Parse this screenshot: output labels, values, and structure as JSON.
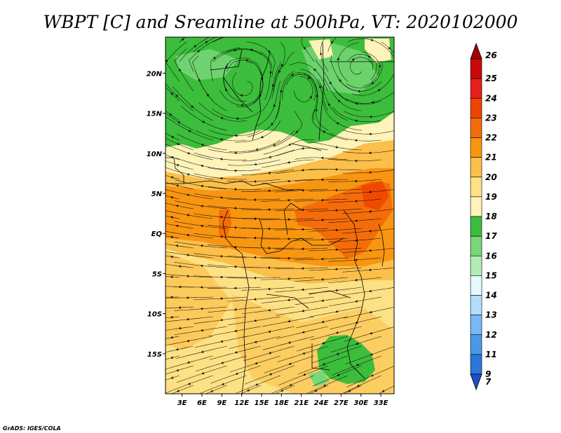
{
  "title": "WBPT [C] and Sreamline at 500hPa, VT: 2020102000",
  "credit": "GrADS: IGES/COLA",
  "map": {
    "lat_labels": [
      "20N",
      "15N",
      "10N",
      "5N",
      "EQ",
      "5S",
      "10S",
      "15S"
    ],
    "lat_values": [
      20,
      15,
      10,
      5,
      0,
      -5,
      -10,
      -15
    ],
    "lon_labels": [
      "3E",
      "6E",
      "9E",
      "12E",
      "15E",
      "18E",
      "21E",
      "24E",
      "27E",
      "30E",
      "33E"
    ],
    "lon_values": [
      3,
      6,
      9,
      12,
      15,
      18,
      21,
      24,
      27,
      30,
      33
    ],
    "lon_range": [
      0.5,
      35
    ],
    "lat_range": [
      -20,
      24.5
    ]
  },
  "colorbar": {
    "labels": [
      "26",
      "25",
      "24",
      "23",
      "22",
      "21",
      "20",
      "19",
      "18",
      "17",
      "16",
      "15",
      "14",
      "13",
      "12",
      "11",
      "9",
      "7"
    ],
    "colors": [
      "#a50000",
      "#c80a0a",
      "#e61e1e",
      "#ee4400",
      "#f46d0a",
      "#f89612",
      "#fbbf4a",
      "#fde184",
      "#fef3b8",
      "#3cbd3c",
      "#78d778",
      "#b4edb4",
      "#e6f9ff",
      "#b4dcff",
      "#78b9f5",
      "#4c98e8",
      "#2c76dc",
      "#1a50c8"
    ]
  },
  "colors": {
    "deep_green": "#3cbd3c",
    "light_green": "#78d778",
    "pale_yellow": "#fef3b8",
    "light_orange": "#fde184",
    "orange": "#fbbf4a",
    "dark_orange": "#f89612",
    "red_orange": "#f46d0a"
  }
}
